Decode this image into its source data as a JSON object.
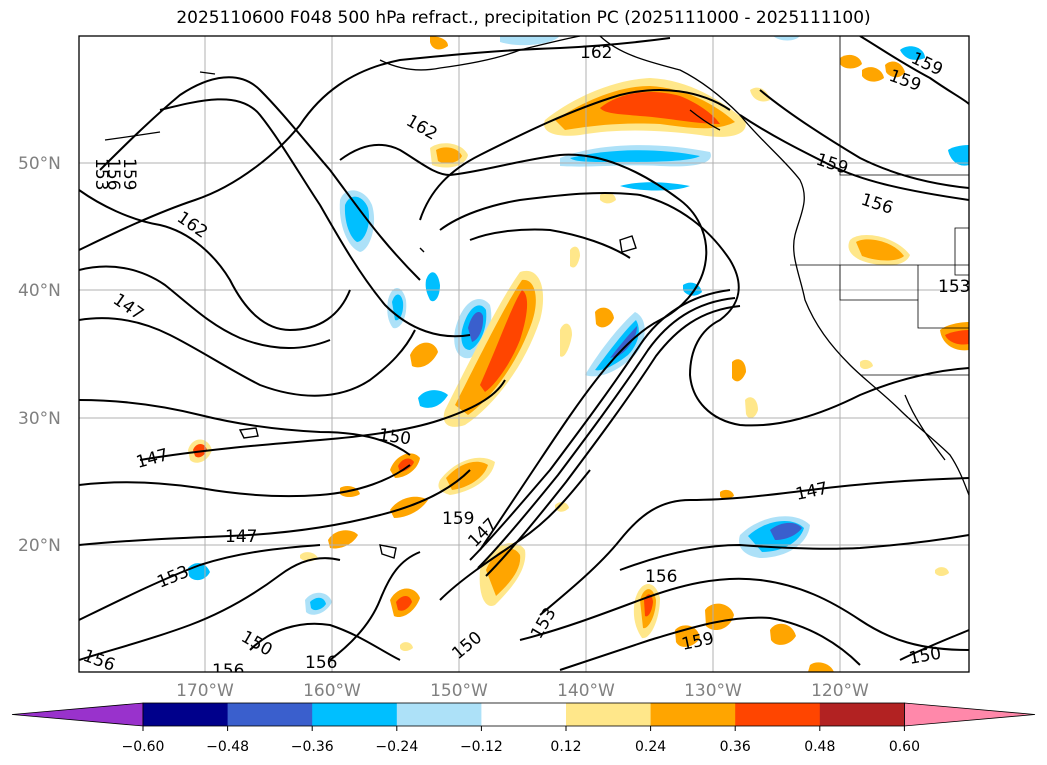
{
  "title": "2025110600 F048 500 hPa refract., precipitation PC (2025111000 - 2025111100)",
  "lat_labels": [
    "50°N",
    "40°N",
    "30°N",
    "20°N"
  ],
  "lon_labels": [
    "170°W",
    "160°W",
    "150°W",
    "140°W",
    "130°W",
    "120°W"
  ],
  "contour_labels": [
    "162",
    "162",
    "162",
    "159",
    "159",
    "159",
    "159",
    "156",
    "156",
    "156",
    "156",
    "156",
    "153",
    "153",
    "153",
    "153",
    "150",
    "150",
    "150",
    "150",
    "147",
    "147",
    "147",
    "147",
    "147"
  ],
  "colorbar": {
    "ticks": [
      "−0.60",
      "−0.48",
      "−0.36",
      "−0.24",
      "−0.12",
      "0.12",
      "0.24",
      "0.36",
      "0.48",
      "0.60"
    ],
    "colors": [
      "#9932CC",
      "#00008B",
      "#3A5FCD",
      "#00BFFF",
      "#ADE1F8",
      "#FFFFFF",
      "#FFE78A",
      "#FFA500",
      "#FF4500",
      "#B22222",
      "#FF88AA"
    ]
  },
  "colors": {
    "orange": "#FFA500",
    "red": "#FF4500",
    "yellow": "#FFE78A",
    "lightblue": "#ADE1F8",
    "blue": "#00BFFF",
    "darkblue": "#3A5FCD"
  }
}
